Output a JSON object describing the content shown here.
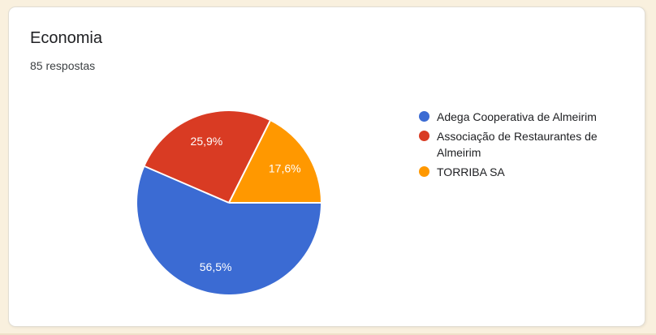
{
  "page": {
    "background_color": "#F9F0DE"
  },
  "card": {
    "title": "Economia",
    "subtitle": "85 respostas"
  },
  "chart_data": {
    "type": "pie",
    "title": "Economia",
    "responses_label": "85 respostas",
    "legend_position": "right",
    "rotation": "first slice starts at 3 o'clock and sweeps clockwise",
    "label_color": "#ffffff",
    "separator_color": "#ffffff",
    "slices": [
      {
        "label": "Adega Cooperativa de Almeirim",
        "value_pct": 56.5,
        "display": "56,5%",
        "color": "#3B6BD3"
      },
      {
        "label": "Associação de Restaurantes de Almeirim",
        "value_pct": 25.9,
        "display": "25,9%",
        "color": "#D93B23"
      },
      {
        "label": "TORRIBA SA",
        "value_pct": 17.6,
        "display": "17,6%",
        "color": "#FF9800"
      }
    ]
  }
}
